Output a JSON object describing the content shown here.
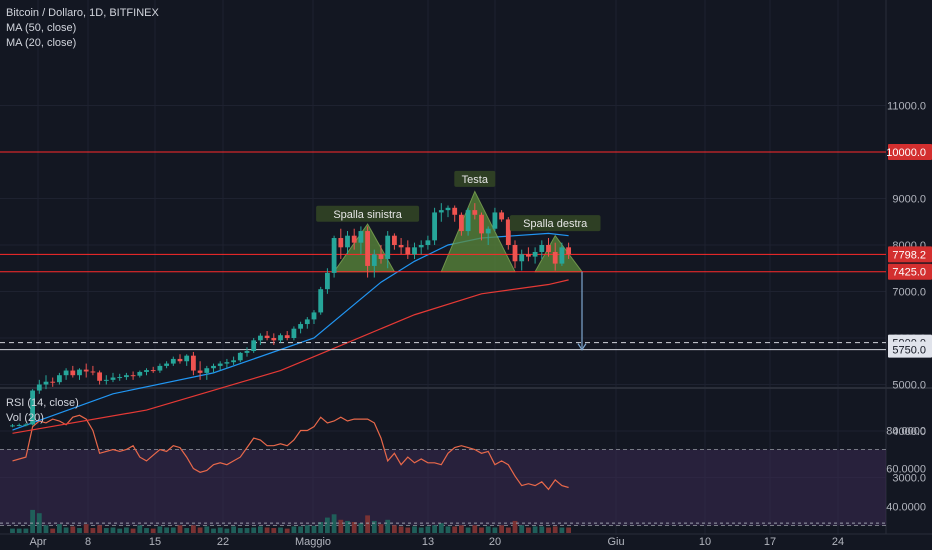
{
  "header": {
    "symbol_line": "Bitcoin / Dollaro, 1D, BITFINEX",
    "ma50_label": "MA (50, close)",
    "ma20_label": "MA (20, close)",
    "rsi_label": "RSI (14, close)",
    "vol_label": "Vol (20)"
  },
  "colors": {
    "background": "#131722",
    "up": "#26a69a",
    "down": "#ef5350",
    "ma20": "#2196f3",
    "ma50": "#e53935",
    "rsi_line": "#e8684a",
    "rsi_band": "#3a2a52",
    "pattern_fill": "#5c8a3a",
    "horizontal_red": "#ff2a2a",
    "horizontal_white": "#d1d4dc",
    "annotation_bg": "#2e3f24",
    "arrow": "#7ea7cf"
  },
  "chart_data": [
    {
      "type": "candlestick",
      "title": "Bitcoin / Dollaro, 1D, BITFINEX",
      "x_tick_labels": [
        "Apr",
        "8",
        "15",
        "22",
        "Maggio",
        "13",
        "20",
        "Giu",
        "10",
        "17",
        "24"
      ],
      "y_tick_labels": [
        "3000.0",
        "4000.0",
        "5000.0",
        "6000.0",
        "7000.0",
        "8000.0",
        "9000.0",
        "11000.0"
      ],
      "ylim": [
        3000,
        11000
      ],
      "start_date": "2019-03-30",
      "candles": [
        [
          4100,
          4150,
          4080,
          4120
        ],
        [
          4120,
          4160,
          4100,
          4130
        ],
        [
          4130,
          4170,
          4100,
          4140
        ],
        [
          4140,
          4900,
          4120,
          4870
        ],
        [
          4870,
          5100,
          4800,
          5000
        ],
        [
          5000,
          5200,
          4900,
          5060
        ],
        [
          5060,
          5150,
          4950,
          5050
        ],
        [
          5050,
          5250,
          5000,
          5200
        ],
        [
          5200,
          5350,
          5100,
          5300
        ],
        [
          5300,
          5400,
          5150,
          5200
        ],
        [
          5200,
          5350,
          5100,
          5320
        ],
        [
          5320,
          5450,
          5150,
          5280
        ],
        [
          5280,
          5400,
          5200,
          5260
        ],
        [
          5260,
          5300,
          5000,
          5080
        ],
        [
          5080,
          5200,
          5000,
          5100
        ],
        [
          5100,
          5250,
          5050,
          5150
        ],
        [
          5150,
          5230,
          5080,
          5160
        ],
        [
          5160,
          5250,
          5100,
          5200
        ],
        [
          5200,
          5280,
          5100,
          5190
        ],
        [
          5190,
          5300,
          5150,
          5270
        ],
        [
          5270,
          5350,
          5200,
          5310
        ],
        [
          5310,
          5380,
          5250,
          5300
        ],
        [
          5300,
          5450,
          5250,
          5400
        ],
        [
          5400,
          5500,
          5350,
          5450
        ],
        [
          5450,
          5600,
          5400,
          5550
        ],
        [
          5550,
          5650,
          5450,
          5500
        ],
        [
          5500,
          5650,
          5400,
          5620
        ],
        [
          5620,
          5700,
          5200,
          5300
        ],
        [
          5300,
          5500,
          5100,
          5250
        ],
        [
          5250,
          5400,
          5100,
          5350
        ],
        [
          5350,
          5450,
          5250,
          5400
        ],
        [
          5400,
          5500,
          5300,
          5450
        ],
        [
          5450,
          5550,
          5350,
          5480
        ],
        [
          5480,
          5600,
          5420,
          5520
        ],
        [
          5520,
          5700,
          5480,
          5680
        ],
        [
          5680,
          5800,
          5600,
          5720
        ],
        [
          5720,
          6000,
          5680,
          5950
        ],
        [
          5950,
          6100,
          5850,
          6050
        ],
        [
          6050,
          6150,
          5950,
          6000
        ],
        [
          6000,
          6100,
          5850,
          5950
        ],
        [
          5950,
          6100,
          5900,
          6060
        ],
        [
          6060,
          6150,
          5950,
          6000
        ],
        [
          6000,
          6250,
          5950,
          6200
        ],
        [
          6200,
          6350,
          6100,
          6300
        ],
        [
          6300,
          6450,
          6200,
          6400
        ],
        [
          6400,
          6600,
          6300,
          6550
        ],
        [
          6550,
          7100,
          6500,
          7050
        ],
        [
          7050,
          7500,
          6950,
          7400
        ],
        [
          7400,
          8200,
          7300,
          8150
        ],
        [
          8150,
          8350,
          7700,
          7950
        ],
        [
          7950,
          8300,
          7800,
          8200
        ],
        [
          8200,
          8350,
          7900,
          8050
        ],
        [
          8050,
          8400,
          7800,
          8300
        ],
        [
          8300,
          8400,
          7300,
          7550
        ],
        [
          7550,
          7900,
          7300,
          7800
        ],
        [
          7800,
          8000,
          7600,
          7700
        ],
        [
          7700,
          8300,
          7500,
          8200
        ],
        [
          8200,
          8250,
          7900,
          8000
        ],
        [
          8000,
          8150,
          7800,
          7950
        ],
        [
          7950,
          8100,
          7700,
          7800
        ],
        [
          7800,
          8050,
          7700,
          7950
        ],
        [
          7950,
          8100,
          7800,
          8000
        ],
        [
          8000,
          8200,
          7900,
          8100
        ],
        [
          8100,
          8800,
          8000,
          8700
        ],
        [
          8700,
          8900,
          8500,
          8750
        ],
        [
          8750,
          8850,
          8600,
          8800
        ],
        [
          8800,
          8850,
          8500,
          8650
        ],
        [
          8650,
          8700,
          8200,
          8300
        ],
        [
          8300,
          8800,
          8200,
          8750
        ],
        [
          8750,
          8900,
          8550,
          8650
        ],
        [
          8650,
          8700,
          8100,
          8250
        ],
        [
          8250,
          8400,
          8000,
          8350
        ],
        [
          8350,
          8800,
          8300,
          8700
        ],
        [
          8700,
          8750,
          8500,
          8550
        ],
        [
          8550,
          8600,
          7900,
          8000
        ],
        [
          8000,
          8100,
          7500,
          7650
        ],
        [
          7650,
          7900,
          7450,
          7800
        ],
        [
          7800,
          7950,
          7650,
          7750
        ],
        [
          7750,
          7950,
          7600,
          7850
        ],
        [
          7850,
          8100,
          7700,
          8000
        ],
        [
          8000,
          8150,
          7750,
          7850
        ],
        [
          7850,
          8050,
          7450,
          7600
        ],
        [
          7600,
          8050,
          7550,
          7950
        ],
        [
          7950,
          8050,
          7700,
          7798.2
        ]
      ],
      "ma20": [
        [
          0,
          4020
        ],
        [
          15,
          4800
        ],
        [
          30,
          5250
        ],
        [
          45,
          6000
        ],
        [
          50,
          6600
        ],
        [
          55,
          7200
        ],
        [
          60,
          7650
        ],
        [
          65,
          8000
        ],
        [
          70,
          8150
        ],
        [
          75,
          8200
        ],
        [
          80,
          8250
        ],
        [
          83,
          8200
        ]
      ],
      "ma50": [
        [
          0,
          3950
        ],
        [
          20,
          4450
        ],
        [
          40,
          5300
        ],
        [
          50,
          5900
        ],
        [
          60,
          6500
        ],
        [
          70,
          6950
        ],
        [
          80,
          7150
        ],
        [
          83,
          7250
        ]
      ],
      "horizontal_lines": [
        {
          "value": 10000,
          "label": "10000.0",
          "style": "solid",
          "color": "red"
        },
        {
          "value": 7798.2,
          "label": "7798.2",
          "style": "solid",
          "color": "red"
        },
        {
          "value": 7425,
          "label": "7425.0",
          "style": "solid",
          "color": "red"
        },
        {
          "value": 5900,
          "label": "5900.0",
          "style": "dashed",
          "color": "white"
        },
        {
          "value": 5750,
          "label": "5750.0",
          "style": "solid",
          "color": "white"
        }
      ],
      "pattern": {
        "name": "head-and-shoulders",
        "neckline": 7425,
        "points": [
          [
            48,
            7425
          ],
          [
            53,
            8450
          ],
          [
            57,
            7425
          ],
          [
            64,
            7425
          ],
          [
            69,
            9150
          ],
          [
            75,
            7425
          ],
          [
            78,
            7425
          ],
          [
            81,
            8200
          ],
          [
            85,
            7425
          ]
        ],
        "labels": [
          {
            "text": "Spalla sinistra",
            "at": [
              53,
              8650
            ]
          },
          {
            "text": "Testa",
            "at": [
              69,
              9400
            ]
          },
          {
            "text": "Spalla destra",
            "at": [
              81,
              8450
            ]
          }
        ],
        "target_arrow": {
          "from": [
            85,
            7425
          ],
          "to": [
            85,
            5750
          ]
        }
      }
    },
    {
      "type": "line",
      "title": "RSI (14, close)",
      "y_tick_labels": [
        "40.0000",
        "60.0000",
        "80.0000"
      ],
      "ylim": [
        25,
        93
      ],
      "band": [
        30,
        70
      ],
      "series": [
        {
          "values": [
            64,
            65,
            66,
            82,
            85,
            84,
            86,
            85,
            83,
            87,
            88,
            86,
            80,
            68,
            69,
            70,
            69,
            70,
            72,
            66,
            64,
            67,
            70,
            69,
            72,
            71,
            66,
            60,
            58,
            59,
            62,
            63,
            62,
            64,
            66,
            71,
            76,
            75,
            72,
            72,
            73,
            72,
            75,
            80,
            80,
            82,
            87,
            84,
            85,
            87,
            85,
            86,
            86,
            86,
            84,
            76,
            64,
            68,
            62,
            66,
            63,
            65,
            63,
            63,
            62,
            68,
            71,
            72,
            71,
            70,
            68,
            69,
            62,
            64,
            62,
            56,
            51,
            52,
            51,
            53,
            49,
            54,
            51,
            50
          ]
        }
      ]
    },
    {
      "type": "bar",
      "title": "Vol (20)",
      "ylim": [
        0,
        100
      ],
      "values": [
        8,
        8,
        8,
        42,
        36,
        14,
        8,
        16,
        10,
        12,
        9,
        16,
        9,
        14,
        9,
        10,
        8,
        10,
        8,
        14,
        9,
        8,
        12,
        10,
        10,
        14,
        9,
        14,
        10,
        12,
        8,
        10,
        8,
        12,
        9,
        9,
        10,
        12,
        10,
        9,
        10,
        8,
        12,
        12,
        14,
        13,
        20,
        28,
        34,
        24,
        22,
        20,
        18,
        32,
        22,
        16,
        24,
        14,
        12,
        10,
        12,
        10,
        12,
        14,
        18,
        12,
        12,
        14,
        10,
        14,
        10,
        12,
        10,
        14,
        10,
        22,
        14,
        10,
        12,
        12,
        10,
        12,
        10,
        10
      ],
      "average_line": 18
    }
  ]
}
